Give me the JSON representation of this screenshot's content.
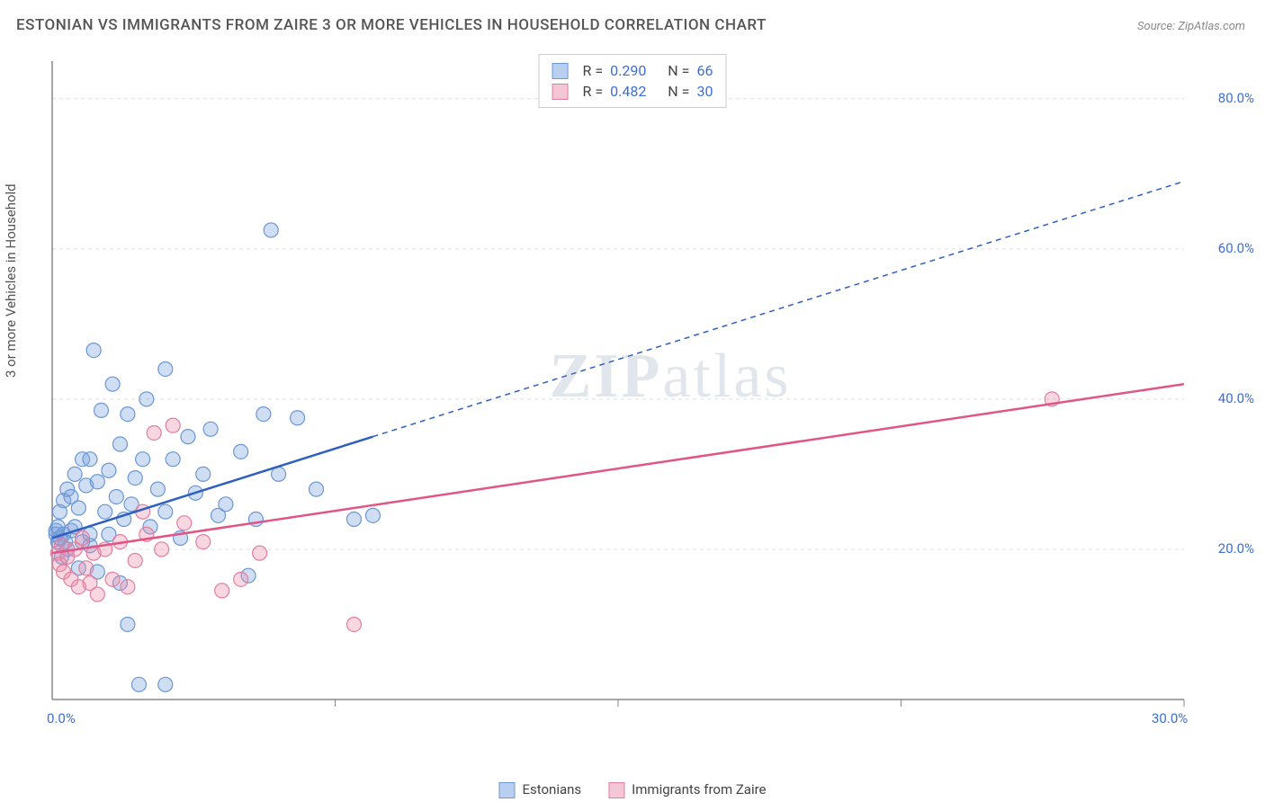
{
  "title": "ESTONIAN VS IMMIGRANTS FROM ZAIRE 3 OR MORE VEHICLES IN HOUSEHOLD CORRELATION CHART",
  "source": "Source: ZipAtlas.com",
  "ylabel": "3 or more Vehicles in Household",
  "watermark": {
    "bold": "ZIP",
    "rest": "atlas"
  },
  "chart": {
    "type": "scatter",
    "background_color": "#ffffff",
    "grid_color": "#dddddd",
    "axis_color": "#888888",
    "tick_color": "#3b6fd6",
    "xlim": [
      0,
      30
    ],
    "ylim": [
      0,
      85
    ],
    "xticks": [
      {
        "v": 0,
        "label": "0.0%"
      },
      {
        "v": 30,
        "label": "30.0%"
      }
    ],
    "yticks": [
      {
        "v": 20,
        "label": "20.0%"
      },
      {
        "v": 40,
        "label": "40.0%"
      },
      {
        "v": 60,
        "label": "60.0%"
      },
      {
        "v": 80,
        "label": "80.0%"
      }
    ],
    "x_grid_at": [
      7.5,
      15,
      22.5,
      30
    ],
    "marker_radius": 8,
    "marker_stroke_width": 1.2,
    "series": [
      {
        "id": "estonians",
        "label": "Estonians",
        "fill": "rgba(120,160,220,0.35)",
        "stroke": "#6a97d4",
        "swatch_fill": "#b9cfef",
        "swatch_stroke": "#6a97d4",
        "R": "0.290",
        "N": "66",
        "trend": {
          "solid": {
            "x1": 0,
            "y1": 21.5,
            "x2": 8.5,
            "y2": 35.0
          },
          "dashed": {
            "x1": 8.5,
            "y1": 35.0,
            "x2": 30,
            "y2": 69.0
          },
          "color": "#2f5fc0",
          "width": 2.5
        },
        "points_xy": [
          [
            0.1,
            22.0
          ],
          [
            0.1,
            22.5
          ],
          [
            0.15,
            21.0
          ],
          [
            0.15,
            23.0
          ],
          [
            0.2,
            21.5
          ],
          [
            0.2,
            25.0
          ],
          [
            0.25,
            19.0
          ],
          [
            0.3,
            22.0
          ],
          [
            0.3,
            26.5
          ],
          [
            0.35,
            21.0
          ],
          [
            0.4,
            28.0
          ],
          [
            0.4,
            20.0
          ],
          [
            0.5,
            27.0
          ],
          [
            0.5,
            22.5
          ],
          [
            0.6,
            30.0
          ],
          [
            0.6,
            23.0
          ],
          [
            0.7,
            17.5
          ],
          [
            0.7,
            25.5
          ],
          [
            0.8,
            21.0
          ],
          [
            0.8,
            32.0
          ],
          [
            0.9,
            28.5
          ],
          [
            1.0,
            20.5
          ],
          [
            1.0,
            32.0
          ],
          [
            1.0,
            22.0
          ],
          [
            1.1,
            46.5
          ],
          [
            1.2,
            29.0
          ],
          [
            1.2,
            17.0
          ],
          [
            1.3,
            38.5
          ],
          [
            1.4,
            25.0
          ],
          [
            1.5,
            30.5
          ],
          [
            1.5,
            22.0
          ],
          [
            1.6,
            42.0
          ],
          [
            1.7,
            27.0
          ],
          [
            1.8,
            15.5
          ],
          [
            1.8,
            34.0
          ],
          [
            1.9,
            24.0
          ],
          [
            2.0,
            10.0
          ],
          [
            2.0,
            38.0
          ],
          [
            2.1,
            26.0
          ],
          [
            2.2,
            29.5
          ],
          [
            2.3,
            2.0
          ],
          [
            2.4,
            32.0
          ],
          [
            2.5,
            40.0
          ],
          [
            2.6,
            23.0
          ],
          [
            2.8,
            28.0
          ],
          [
            3.0,
            44.0
          ],
          [
            3.0,
            25.0
          ],
          [
            3.0,
            2.0
          ],
          [
            3.2,
            32.0
          ],
          [
            3.4,
            21.5
          ],
          [
            3.6,
            35.0
          ],
          [
            3.8,
            27.5
          ],
          [
            4.0,
            30.0
          ],
          [
            4.2,
            36.0
          ],
          [
            4.4,
            24.5
          ],
          [
            4.6,
            26.0
          ],
          [
            5.0,
            33.0
          ],
          [
            5.2,
            16.5
          ],
          [
            5.4,
            24.0
          ],
          [
            5.6,
            38.0
          ],
          [
            5.8,
            62.5
          ],
          [
            6.0,
            30.0
          ],
          [
            6.5,
            37.5
          ],
          [
            7.0,
            28.0
          ],
          [
            8.0,
            24.0
          ],
          [
            8.5,
            24.5
          ]
        ]
      },
      {
        "id": "zaire",
        "label": "Immigrants from Zaire",
        "fill": "rgba(235,140,170,0.35)",
        "stroke": "#e07fa0",
        "swatch_fill": "#f5c6d6",
        "swatch_stroke": "#e07fa0",
        "R": "0.482",
        "N": "30",
        "trend": {
          "solid": {
            "x1": 0,
            "y1": 19.5,
            "x2": 30,
            "y2": 42.0
          },
          "color": "#e05585",
          "width": 2.5
        },
        "points_xy": [
          [
            0.15,
            19.5
          ],
          [
            0.2,
            18.0
          ],
          [
            0.25,
            20.5
          ],
          [
            0.3,
            17.0
          ],
          [
            0.4,
            19.0
          ],
          [
            0.5,
            16.0
          ],
          [
            0.6,
            20.0
          ],
          [
            0.7,
            15.0
          ],
          [
            0.8,
            21.5
          ],
          [
            0.9,
            17.5
          ],
          [
            1.0,
            15.5
          ],
          [
            1.1,
            19.5
          ],
          [
            1.2,
            14.0
          ],
          [
            1.4,
            20.0
          ],
          [
            1.6,
            16.0
          ],
          [
            1.8,
            21.0
          ],
          [
            2.0,
            15.0
          ],
          [
            2.2,
            18.5
          ],
          [
            2.4,
            25.0
          ],
          [
            2.5,
            22.0
          ],
          [
            2.7,
            35.5
          ],
          [
            2.9,
            20.0
          ],
          [
            3.2,
            36.5
          ],
          [
            3.5,
            23.5
          ],
          [
            4.0,
            21.0
          ],
          [
            4.5,
            14.5
          ],
          [
            5.0,
            16.0
          ],
          [
            5.5,
            19.5
          ],
          [
            8.0,
            10.0
          ],
          [
            26.5,
            40.0
          ]
        ]
      }
    ]
  },
  "legend_labels": {
    "R_prefix": "R =",
    "N_prefix": "N ="
  }
}
